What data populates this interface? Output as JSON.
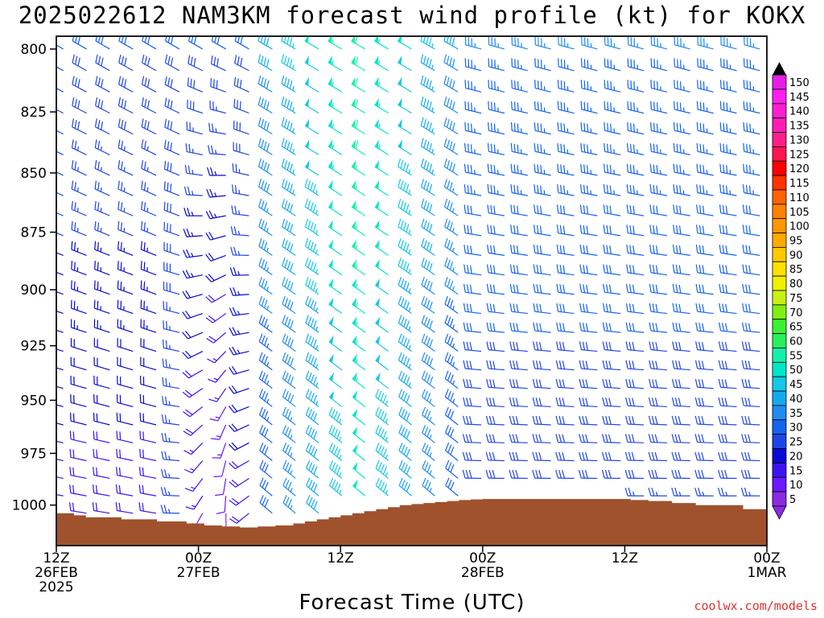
{
  "header": {
    "title": "2025022612 NAM3KM forecast wind profile (kt) for KOKX"
  },
  "credit": "coolwx.com/models",
  "chart_data": {
    "type": "wind-barb-profile",
    "title": "2025022612 NAM3KM forecast wind profile (kt) for KOKX",
    "xlabel": "Forecast Time (UTC)",
    "ylabel": "",
    "units": "kt",
    "y_axis": {
      "range": [
        1020,
        795
      ],
      "ticks": [
        800,
        825,
        850,
        875,
        900,
        925,
        950,
        975,
        1000
      ]
    },
    "x_axis": {
      "range_hours": [
        0,
        60
      ],
      "ticks": [
        {
          "hour": 0,
          "lines": [
            "12Z",
            "26FEB",
            "2025"
          ]
        },
        {
          "hour": 12,
          "lines": [
            "00Z",
            "27FEB"
          ]
        },
        {
          "hour": 24,
          "lines": [
            "12Z"
          ]
        },
        {
          "hour": 36,
          "lines": [
            "00Z",
            "28FEB"
          ]
        },
        {
          "hour": 48,
          "lines": [
            "12Z"
          ]
        },
        {
          "hour": 60,
          "lines": [
            "00Z",
            "1MAR"
          ]
        }
      ]
    },
    "terrain": {
      "color": "#a0522d",
      "hours": [
        0,
        1.5,
        2.5,
        5.5,
        8.5,
        11,
        12.5,
        14,
        15.5,
        17,
        18.5,
        20,
        21,
        22,
        23,
        24,
        25,
        26,
        27,
        28,
        29,
        30,
        31,
        32,
        33,
        34,
        35,
        36,
        40,
        44,
        46,
        48.5,
        50,
        52,
        54,
        56,
        58,
        60
      ],
      "surface_mb": [
        1004,
        1005,
        1006,
        1007,
        1008,
        1009,
        1010,
        1010.5,
        1011,
        1010.5,
        1010,
        1009,
        1008,
        1007,
        1006,
        1005,
        1004,
        1003,
        1002,
        1001,
        1000,
        999.5,
        999,
        998.5,
        998,
        997.5,
        997.2,
        997,
        997,
        997,
        997,
        997.5,
        998,
        999,
        1000,
        1000,
        1002,
        1003
      ]
    },
    "colorbar": {
      "levels": [
        5,
        10,
        15,
        20,
        25,
        30,
        35,
        40,
        45,
        50,
        55,
        60,
        65,
        70,
        75,
        80,
        85,
        90,
        95,
        100,
        105,
        110,
        115,
        120,
        125,
        130,
        135,
        140,
        145,
        150
      ],
      "colors": [
        "#8a2be2",
        "#6a18ff",
        "#3c14f0",
        "#0a0ad2",
        "#1e46e6",
        "#1464f0",
        "#1e8cf0",
        "#14aaf0",
        "#14c8e6",
        "#00e6c8",
        "#14f0aa",
        "#28f05a",
        "#3cf032",
        "#7ff014",
        "#c8f014",
        "#f0f000",
        "#ffe100",
        "#ffc800",
        "#ffaa00",
        "#ff9600",
        "#ff8200",
        "#ff6400",
        "#ff3200",
        "#ff0000",
        "#ff1450",
        "#ff1e8c",
        "#ff1eb4",
        "#ff1ed2",
        "#ff1ef0",
        "#e61ee6"
      ]
    },
    "series": [
      {
        "dir_deg": 290,
        "speed_kt": 30
      },
      {
        "dir_deg": 310,
        "speed_kt": 25
      },
      {
        "dir_deg": 200,
        "speed_kt": 15
      },
      {
        "dir_deg": 140,
        "speed_kt": 20
      },
      {
        "dir_deg": 300,
        "speed_kt": 50
      },
      {
        "dir_deg": 320,
        "speed_kt": 60
      },
      {
        "dir_deg": 290,
        "speed_kt": 45
      },
      {
        "dir_deg": 260,
        "speed_kt": 35
      }
    ]
  }
}
